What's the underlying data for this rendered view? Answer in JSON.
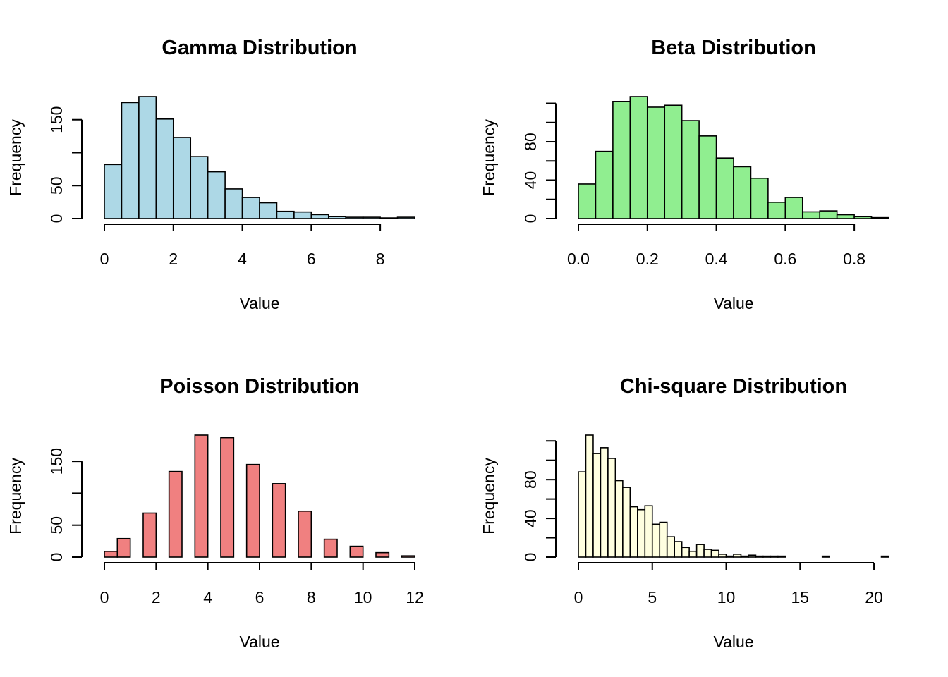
{
  "chart_data": [
    {
      "type": "bar",
      "title": "Gamma Distribution",
      "xlabel": "Value",
      "ylabel": "Frequency",
      "fill": "#ADD8E6",
      "bin_edges": [
        0,
        0.5,
        1,
        1.5,
        2,
        2.5,
        3,
        3.5,
        4,
        4.5,
        5,
        5.5,
        6,
        6.5,
        7,
        7.5,
        8,
        8.5,
        9
      ],
      "values": [
        82,
        176,
        185,
        151,
        123,
        94,
        71,
        45,
        32,
        24,
        11,
        10,
        6,
        3,
        2,
        2,
        1,
        2
      ],
      "xlim": [
        0,
        9
      ],
      "ylim": [
        0,
        185
      ],
      "xticks": [
        0,
        2,
        4,
        6,
        8
      ],
      "xtick_labels": [
        "0",
        "2",
        "4",
        "6",
        "8"
      ],
      "yticks": [
        0,
        50,
        100,
        150
      ],
      "ytick_labels": [
        "0",
        "50",
        "",
        "150"
      ]
    },
    {
      "type": "bar",
      "title": "Beta Distribution",
      "xlabel": "Value",
      "ylabel": "Frequency",
      "fill": "#90EE90",
      "bin_edges": [
        0,
        0.05,
        0.1,
        0.15,
        0.2,
        0.25,
        0.3,
        0.35,
        0.4,
        0.45,
        0.5,
        0.55,
        0.6,
        0.65,
        0.7,
        0.75,
        0.8,
        0.85,
        0.9
      ],
      "values": [
        36,
        70,
        122,
        127,
        116,
        118,
        102,
        86,
        63,
        54,
        42,
        17,
        22,
        7,
        8,
        4,
        2,
        1
      ],
      "xlim": [
        0,
        0.9
      ],
      "ylim": [
        0,
        127
      ],
      "xticks": [
        0,
        0.2,
        0.4,
        0.6,
        0.8
      ],
      "xtick_labels": [
        "0.0",
        "0.2",
        "0.4",
        "0.6",
        "0.8"
      ],
      "yticks": [
        0,
        20,
        40,
        60,
        80,
        100,
        120
      ],
      "ytick_labels": [
        "0",
        "",
        "40",
        "",
        "80",
        "",
        ""
      ]
    },
    {
      "type": "bar",
      "title": "Poisson Distribution",
      "xlabel": "Value",
      "ylabel": "Frequency",
      "fill": "#F08080",
      "bin_edges": [
        0,
        0.5,
        1,
        1.5,
        2,
        2.5,
        3,
        3.5,
        4,
        4.5,
        5,
        5.5,
        6,
        6.5,
        7,
        7.5,
        8,
        8.5,
        9,
        9.5,
        10,
        10.5,
        11,
        11.5,
        12
      ],
      "values": [
        9,
        29,
        0,
        69,
        0,
        134,
        0,
        191,
        0,
        187,
        0,
        145,
        0,
        115,
        0,
        72,
        0,
        28,
        0,
        17,
        0,
        7,
        0,
        2
      ],
      "xlim": [
        0,
        12
      ],
      "ylim": [
        0,
        191
      ],
      "xticks": [
        0,
        2,
        4,
        6,
        8,
        10,
        12
      ],
      "xtick_labels": [
        "0",
        "2",
        "4",
        "6",
        "8",
        "10",
        "12"
      ],
      "yticks": [
        0,
        50,
        100,
        150
      ],
      "ytick_labels": [
        "0",
        "50",
        "",
        "150"
      ]
    },
    {
      "type": "bar",
      "title": "Chi-square Distribution",
      "xlabel": "Value",
      "ylabel": "Frequency",
      "fill": "#FFFFE0",
      "bin_edges": [
        0,
        0.5,
        1,
        1.5,
        2,
        2.5,
        3,
        3.5,
        4,
        4.5,
        5,
        5.5,
        6,
        6.5,
        7,
        7.5,
        8,
        8.5,
        9,
        9.5,
        10,
        10.5,
        11,
        11.5,
        12,
        12.5,
        13,
        13.5,
        14,
        14.5,
        15,
        15.5,
        16,
        16.5,
        17,
        17.5,
        18,
        18.5,
        19,
        19.5,
        20,
        20.5,
        21
      ],
      "values": [
        88,
        126,
        107,
        113,
        102,
        79,
        72,
        52,
        49,
        53,
        34,
        36,
        21,
        16,
        10,
        6,
        13,
        8,
        7,
        3,
        1,
        3,
        1,
        2,
        1,
        1,
        1,
        1,
        0,
        0,
        0,
        0,
        0,
        1,
        0,
        0,
        0,
        0,
        0,
        0,
        0,
        1
      ],
      "xlim": [
        0,
        21
      ],
      "ylim": [
        0,
        126
      ],
      "xticks": [
        0,
        5,
        10,
        15,
        20
      ],
      "xtick_labels": [
        "0",
        "5",
        "10",
        "15",
        "20"
      ],
      "yticks": [
        0,
        20,
        40,
        60,
        80,
        100,
        120
      ],
      "ytick_labels": [
        "0",
        "",
        "40",
        "",
        "80",
        "",
        ""
      ]
    }
  ]
}
